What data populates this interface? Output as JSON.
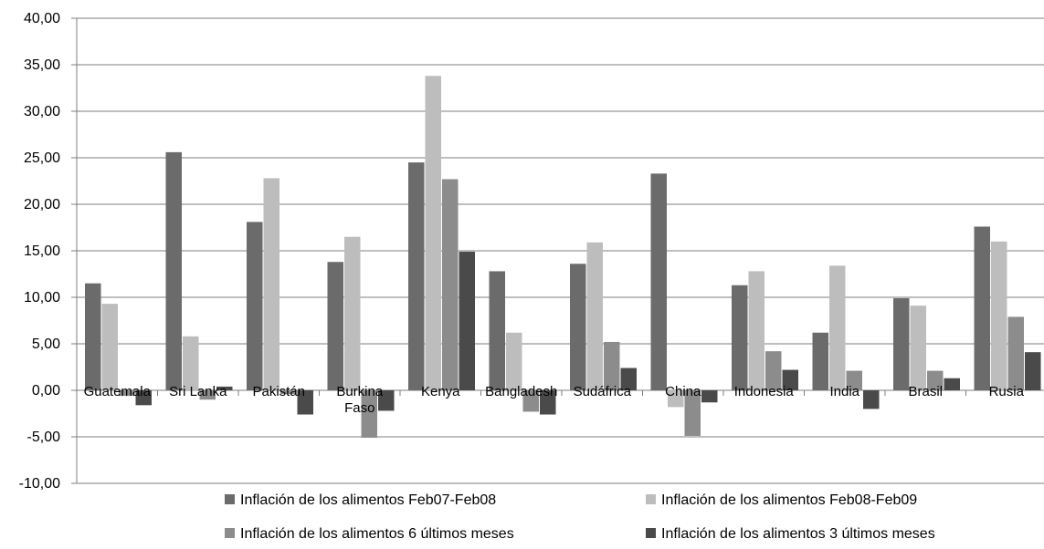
{
  "chart_data": {
    "type": "bar",
    "categories": [
      [
        "Guatemala"
      ],
      [
        "Sri Lanka"
      ],
      [
        "Pakistán"
      ],
      [
        "Burkina",
        "Faso"
      ],
      [
        "Kenya"
      ],
      [
        "Bangladesh"
      ],
      [
        "Sudáfrica"
      ],
      [
        "China"
      ],
      [
        "Indonesia"
      ],
      [
        "India"
      ],
      [
        "Brasil"
      ],
      [
        "Rusia"
      ]
    ],
    "series": [
      {
        "name": "Inflación de los alimentos Feb07-Feb08",
        "color": "#6b6b6b",
        "values": [
          11.5,
          25.6,
          18.1,
          13.8,
          24.5,
          12.8,
          13.6,
          23.3,
          11.3,
          6.2,
          9.9,
          17.6
        ]
      },
      {
        "name": "Inflación de los alimentos Feb08-Feb09",
        "color": "#bdbdbd",
        "values": [
          9.3,
          5.8,
          22.8,
          16.5,
          33.8,
          6.2,
          15.9,
          -1.8,
          12.8,
          13.4,
          9.1,
          16.0
        ]
      },
      {
        "name": "Inflación de los alimentos 6 últimos meses",
        "color": "#8c8c8c",
        "values": [
          -0.6,
          -1.0,
          -0.4,
          -5.1,
          22.7,
          -2.3,
          5.2,
          -4.9,
          4.2,
          2.1,
          2.1,
          7.9
        ]
      },
      {
        "name": "Inflación de los alimentos 3 últimos meses",
        "color": "#4a4a4a",
        "values": [
          -1.6,
          0.4,
          -2.6,
          -2.2,
          14.9,
          -2.6,
          2.4,
          -1.3,
          2.2,
          -2.0,
          1.3,
          4.1
        ]
      }
    ],
    "ylim": [
      -10,
      40
    ],
    "yticks": [
      "40,00",
      "35,00",
      "30,00",
      "25,00",
      "20,00",
      "15,00",
      "10,00",
      "5,00",
      "0,00",
      "-5,00",
      "-10,00"
    ],
    "ytick_values": [
      40,
      35,
      30,
      25,
      20,
      15,
      10,
      5,
      0,
      -5,
      -10
    ],
    "grid": true,
    "legend_position": "bottom",
    "title": "",
    "xlabel": "",
    "ylabel": ""
  }
}
